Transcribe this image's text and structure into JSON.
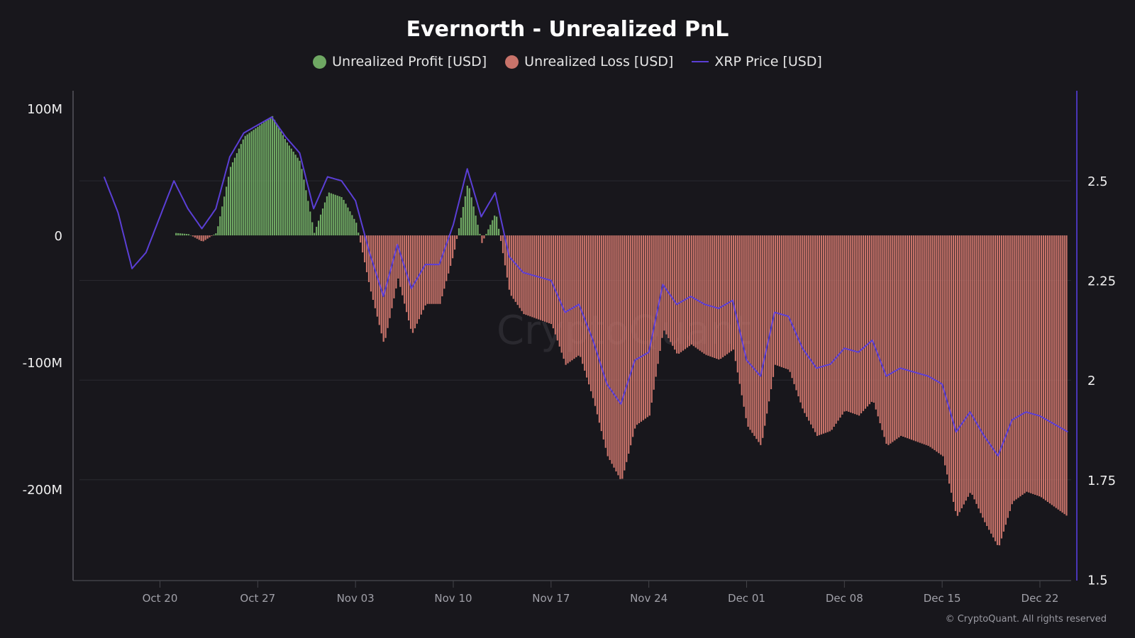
{
  "chart_data": {
    "type": "bar+line",
    "title": "Evernorth - Unrealized PnL",
    "legend": [
      {
        "name": "Unrealized Profit [USD]",
        "color": "#6fa863",
        "marker": "circle"
      },
      {
        "name": "Unrealized Loss [USD]",
        "color": "#c8736a",
        "marker": "circle"
      },
      {
        "name": "XRP Price [USD]",
        "color": "#5b3fd6",
        "marker": "line"
      }
    ],
    "legend_position": "top-center",
    "x_ticks": [
      "Oct 20",
      "Oct 27",
      "Nov 03",
      "Nov 10",
      "Nov 17",
      "Nov 24",
      "Dec 01",
      "Dec 08",
      "Dec 15",
      "Dec 22"
    ],
    "tick_dates": [
      "2025-10-20",
      "2025-10-27",
      "2025-11-03",
      "2025-11-10",
      "2025-11-17",
      "2025-11-24",
      "2025-12-01",
      "2025-12-08",
      "2025-12-15",
      "2025-12-22"
    ],
    "y_left": {
      "ticks": [
        "100M",
        "0",
        "-100M",
        "-200M"
      ],
      "tick_values": [
        100,
        0,
        -100,
        -200
      ],
      "unit": "M USD",
      "range": [
        -272,
        114
      ]
    },
    "y_right": {
      "ticks": [
        "2.5",
        "2.25",
        "2",
        "1.75",
        "1.5"
      ],
      "tick_values": [
        2.5,
        2.25,
        2,
        1.75,
        1.5
      ],
      "range": [
        1.497,
        2.726
      ]
    },
    "grid": "horizontal at right-axis ticks",
    "dates": [
      "2025-10-16",
      "2025-10-17",
      "2025-10-18",
      "2025-10-19",
      "2025-10-20",
      "2025-10-21",
      "2025-10-22",
      "2025-10-23",
      "2025-10-24",
      "2025-10-25",
      "2025-10-26",
      "2025-10-27",
      "2025-10-28",
      "2025-10-29",
      "2025-10-30",
      "2025-10-31",
      "2025-11-01",
      "2025-11-02",
      "2025-11-03",
      "2025-11-04",
      "2025-11-05",
      "2025-11-06",
      "2025-11-07",
      "2025-11-08",
      "2025-11-09",
      "2025-11-10",
      "2025-11-11",
      "2025-11-12",
      "2025-11-13",
      "2025-11-14",
      "2025-11-15",
      "2025-11-16",
      "2025-11-17",
      "2025-11-18",
      "2025-11-19",
      "2025-11-20",
      "2025-11-21",
      "2025-11-22",
      "2025-11-23",
      "2025-11-24",
      "2025-11-25",
      "2025-11-26",
      "2025-11-27",
      "2025-11-28",
      "2025-11-29",
      "2025-11-30",
      "2025-12-01",
      "2025-12-02",
      "2025-12-03",
      "2025-12-04",
      "2025-12-05",
      "2025-12-06",
      "2025-12-07",
      "2025-12-08",
      "2025-12-09",
      "2025-12-10",
      "2025-12-11",
      "2025-12-12",
      "2025-12-13",
      "2025-12-14",
      "2025-12-15",
      "2025-12-16",
      "2025-12-17",
      "2025-12-18",
      "2025-12-19",
      "2025-12-20",
      "2025-12-21",
      "2025-12-22",
      "2025-12-23",
      "2025-12-24"
    ],
    "series": [
      {
        "name": "XRP Price [USD]",
        "axis": "right",
        "values": [
          2.51,
          2.42,
          2.28,
          2.32,
          2.41,
          2.5,
          2.43,
          2.38,
          2.43,
          2.56,
          2.62,
          2.64,
          2.66,
          2.61,
          2.57,
          2.43,
          2.51,
          2.5,
          2.45,
          2.32,
          2.21,
          2.34,
          2.23,
          2.29,
          2.29,
          2.39,
          2.53,
          2.41,
          2.47,
          2.31,
          2.27,
          2.26,
          2.25,
          2.17,
          2.19,
          2.1,
          1.99,
          1.94,
          2.05,
          2.07,
          2.24,
          2.19,
          2.21,
          2.19,
          2.18,
          2.2,
          2.05,
          2.01,
          2.17,
          2.16,
          2.08,
          2.03,
          2.04,
          2.08,
          2.07,
          2.1,
          2.01,
          2.03,
          2.02,
          2.01,
          1.99,
          1.87,
          1.92,
          1.86,
          1.81,
          1.9,
          1.92,
          1.91,
          1.89,
          1.87
        ]
      },
      {
        "name": "Unrealized PnL [USD, M]",
        "axis": "left",
        "values": [
          null,
          null,
          null,
          null,
          null,
          2,
          1,
          -5,
          2,
          54,
          78,
          86,
          94,
          74,
          58,
          2,
          34,
          30,
          10,
          -42,
          -86,
          -34,
          -78,
          -54,
          -54,
          -14,
          42,
          -6,
          18,
          -46,
          -62,
          -66,
          -70,
          -102,
          -94,
          -130,
          -174,
          -194,
          -150,
          -142,
          -74,
          -94,
          -86,
          -94,
          -98,
          -90,
          -150,
          -166,
          -102,
          -106,
          -138,
          -158,
          -154,
          -138,
          -142,
          -130,
          -166,
          -158,
          -162,
          -166,
          -174,
          -222,
          -202,
          -226,
          -246,
          -210,
          -202,
          -206,
          -214,
          -222
        ]
      }
    ]
  },
  "watermark": "CryptoQuant",
  "copyright": "© CryptoQuant. All rights reserved"
}
